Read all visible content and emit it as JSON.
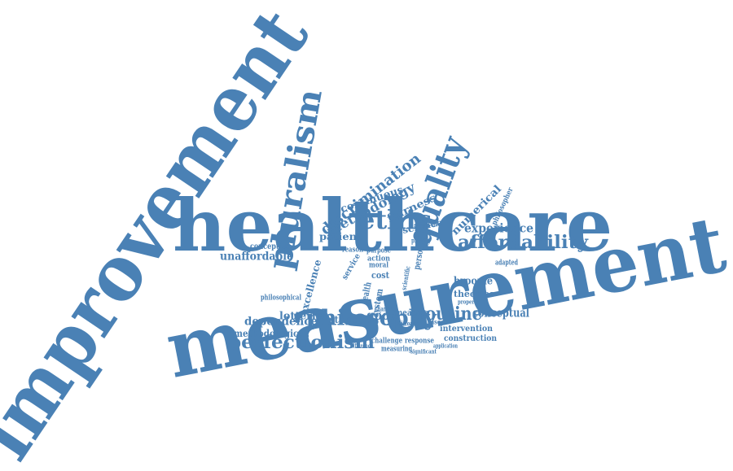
{
  "colors": {
    "word": "#4a81b5",
    "background": "#ffffff"
  },
  "words": [
    "improvement",
    "measurement",
    "healthcare",
    "pluralism",
    "quality",
    "ethic",
    "philosophy",
    "affordability",
    "discrimination",
    "perfectionism",
    "methodology",
    "routine",
    "continuous",
    "dependence",
    "unaffordable",
    "experience",
    "numerical",
    "fairness",
    "patient",
    "lotteries",
    "good",
    "science",
    "stance",
    "conceptual",
    "broome",
    "theories",
    "methodological",
    "excellence",
    "cost",
    "measure",
    "intervention",
    "construction",
    "conception",
    "philosophical",
    "challenge",
    "response",
    "measuring",
    "adapted",
    "philosopher",
    "person",
    "system",
    "health",
    "service",
    "reason",
    "action",
    "moral",
    "purpose",
    "priority",
    "effective",
    "different",
    "change",
    "case",
    "difference",
    "application",
    "significant",
    "scientific",
    "property"
  ]
}
